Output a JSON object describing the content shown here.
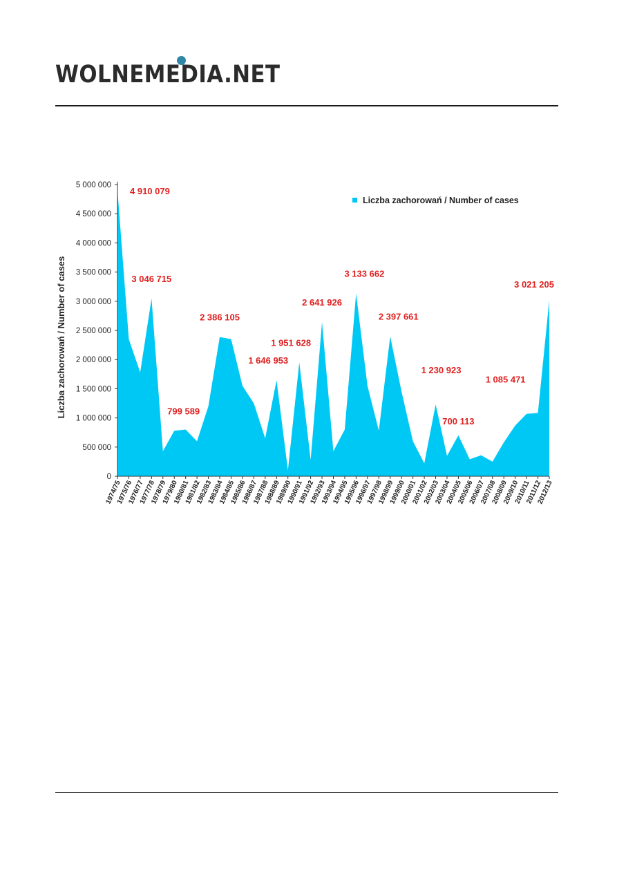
{
  "header": {
    "logo_text": "WOLNEMEDIA.NET",
    "accent": "#2f86a6"
  },
  "chart_data": {
    "type": "area",
    "title": "",
    "xlabel": "",
    "ylabel": "Liczba zachorowań  /  Number of cases",
    "ylim": [
      0,
      5000000
    ],
    "yticks": [
      0,
      500000,
      1000000,
      1500000,
      2000000,
      2500000,
      3000000,
      3500000,
      4000000,
      4500000,
      5000000
    ],
    "ytick_labels": [
      "0",
      "500 000",
      "1 000 000",
      "1 500 000",
      "2 000 000",
      "2 500 000",
      "3 000 000",
      "3 500 000",
      "4 000 000",
      "4 500 000",
      "5 000 000"
    ],
    "grid": false,
    "legend_position": "top-right",
    "fill_color": "#00c8f5",
    "label_color": "#e02020",
    "categories": [
      "1974/75",
      "1975/76",
      "1976/77",
      "1977/78",
      "1978/79",
      "1979/80",
      "1980/81",
      "1981/82",
      "1982/83",
      "1983/84",
      "1984/85",
      "1985/86",
      "1986/87",
      "1987/88",
      "1988/89",
      "1989/90",
      "1990/91",
      "1991/92",
      "1992/93",
      "1993/94",
      "1994/95",
      "1995/96",
      "1996/97",
      "1997/98",
      "1998/99",
      "1999/00",
      "2000/01",
      "2001/02",
      "2002/03",
      "2003/04",
      "2004/05",
      "2005/06",
      "2006/07",
      "2007/08",
      "2008/09",
      "2009/10",
      "2010/11",
      "2011/12",
      "2012/13"
    ],
    "series": [
      {
        "name": "Liczba zachorowań / Number of cases",
        "values": [
          4910079,
          2350000,
          1780000,
          3046715,
          430000,
          780000,
          799589,
          600000,
          1200000,
          2386105,
          2350000,
          1550000,
          1250000,
          650000,
          1646953,
          100000,
          1951628,
          280000,
          2641926,
          430000,
          800000,
          3133662,
          1550000,
          780000,
          2397661,
          1450000,
          600000,
          220000,
          1230923,
          350000,
          700113,
          290000,
          360000,
          250000,
          580000,
          870000,
          1070000,
          1085471,
          3021205
        ]
      }
    ],
    "annotations": [
      {
        "index": 0,
        "text": "4 910 079"
      },
      {
        "index": 3,
        "text": "3 046 715"
      },
      {
        "index": 6,
        "text": "799 589"
      },
      {
        "index": 9,
        "text": "2 386 105"
      },
      {
        "index": 14,
        "text": "1 646 953"
      },
      {
        "index": 16,
        "text": "1 951 628"
      },
      {
        "index": 18,
        "text": "2 641 926"
      },
      {
        "index": 21,
        "text": "3 133 662"
      },
      {
        "index": 24,
        "text": "2 397 661"
      },
      {
        "index": 28,
        "text": "1 230 923"
      },
      {
        "index": 30,
        "text": "700 113"
      },
      {
        "index": 37,
        "text": "1 085 471"
      },
      {
        "index": 38,
        "text": "3 021 205"
      }
    ]
  }
}
